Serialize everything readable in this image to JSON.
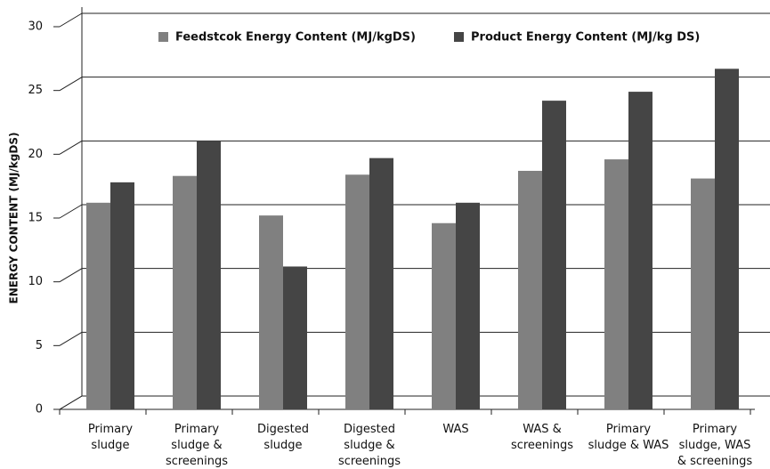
{
  "chart_data": {
    "type": "bar",
    "y_label": "ENERGY CONTENT (MJ/kgDS)",
    "categories": [
      "Primary sludge",
      "Primary sludge & screenings",
      "Digested sludge",
      "Digested sludge & screenings",
      "WAS",
      "WAS & screenings",
      "Primary sludge & WAS",
      "Primary sludge, WAS & screenings"
    ],
    "series": [
      {
        "name": "Feedstcok Energy Content (MJ/kgDS)",
        "color": "#808080",
        "values": [
          16.2,
          18.3,
          15.2,
          18.4,
          14.6,
          18.7,
          19.6,
          18.1
        ]
      },
      {
        "name": "Product Energy Content (MJ/kg DS)",
        "color": "#454545",
        "values": [
          17.8,
          21.0,
          11.2,
          19.7,
          16.2,
          24.2,
          24.9,
          26.7
        ]
      }
    ],
    "ylim": [
      0,
      30
    ],
    "yticks": [
      0,
      5,
      10,
      15,
      20,
      25,
      30
    ],
    "grid": true
  }
}
